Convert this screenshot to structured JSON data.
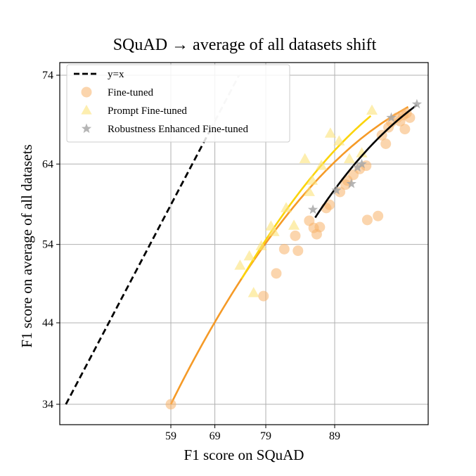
{
  "chart_data": {
    "type": "scatter",
    "title": "SQuAD → average of all datasets shift",
    "xlabel": "F1 score on SQuAD",
    "ylabel": "F1 score on average of all datasets",
    "x_ticks": [
      59,
      69,
      79,
      89
    ],
    "y_ticks": [
      34,
      44,
      54,
      64,
      74
    ],
    "x_scale": "probit",
    "y_scale": "probit",
    "grid": true,
    "legend_position": "top-left",
    "reference_line": {
      "name": "y=x",
      "x": [
        34,
        74
      ],
      "y": [
        34,
        74
      ]
    },
    "series": [
      {
        "name": "Fine-tuned",
        "color": "#f7b36a",
        "marker": "circle",
        "points": [
          [
            59,
            34
          ],
          [
            78.6,
            47.4
          ],
          [
            80.8,
            50.3
          ],
          [
            82.1,
            53.4
          ],
          [
            83.8,
            55.1
          ],
          [
            84.2,
            53.2
          ],
          [
            85.8,
            57.0
          ],
          [
            86.4,
            56.1
          ],
          [
            86.8,
            55.3
          ],
          [
            87.2,
            56.2
          ],
          [
            88.0,
            58.6
          ],
          [
            88.4,
            59.0
          ],
          [
            89.6,
            60.6
          ],
          [
            90.2,
            61.5
          ],
          [
            90.4,
            62.0
          ],
          [
            91.0,
            62.7
          ],
          [
            91.6,
            63.4
          ],
          [
            92.3,
            57.1
          ],
          [
            93.2,
            57.6
          ],
          [
            92.2,
            63.8
          ],
          [
            93.8,
            66.4
          ],
          [
            93.5,
            67.4
          ],
          [
            94.0,
            68.3
          ],
          [
            94.2,
            68.9
          ],
          [
            94.6,
            69.4
          ],
          [
            94.8,
            69.0
          ],
          [
            95.0,
            69.7
          ],
          [
            95.2,
            69.9
          ],
          [
            95.4,
            69.4
          ],
          [
            95.1,
            68.1
          ]
        ],
        "fit_line": {
          "color": "#f59a27",
          "x": [
            59,
            95.3
          ],
          "y": [
            34,
            70.6
          ]
        }
      },
      {
        "name": "Prompt Fine-tuned",
        "color": "#fbe27a",
        "marker": "triangle",
        "points": [
          [
            74.2,
            51.3
          ],
          [
            76.0,
            52.5
          ],
          [
            76.8,
            47.8
          ],
          [
            78.2,
            53.8
          ],
          [
            79.9,
            56.3
          ],
          [
            80.4,
            55.6
          ],
          [
            82.4,
            58.6
          ],
          [
            83.6,
            56.4
          ],
          [
            85.2,
            64.6
          ],
          [
            85.8,
            60.6
          ],
          [
            86.2,
            62.0
          ],
          [
            87.4,
            63.8
          ],
          [
            88.5,
            67.6
          ],
          [
            89.5,
            66.7
          ],
          [
            90.6,
            64.6
          ],
          [
            91.8,
            65.3
          ],
          [
            92.7,
            70.2
          ]
        ],
        "fit_line": {
          "color": "#fbd40b",
          "x": [
            74.5,
            92.6
          ],
          "y": [
            49.6,
            69.6
          ]
        }
      },
      {
        "name": "Robustness Enhanced Fine-tuned",
        "color": "#a8a8a8",
        "marker": "star",
        "points": [
          [
            86.3,
            58.4
          ],
          [
            89.2,
            60.8
          ],
          [
            90.8,
            61.6
          ],
          [
            91.4,
            63.6
          ],
          [
            91.8,
            64.0
          ],
          [
            94.2,
            69.4
          ],
          [
            95.8,
            70.9
          ]
        ],
        "fit_line": {
          "color": "#000000",
          "x": [
            86.6,
            95.8
          ],
          "y": [
            57.4,
            70.8
          ]
        }
      }
    ]
  }
}
